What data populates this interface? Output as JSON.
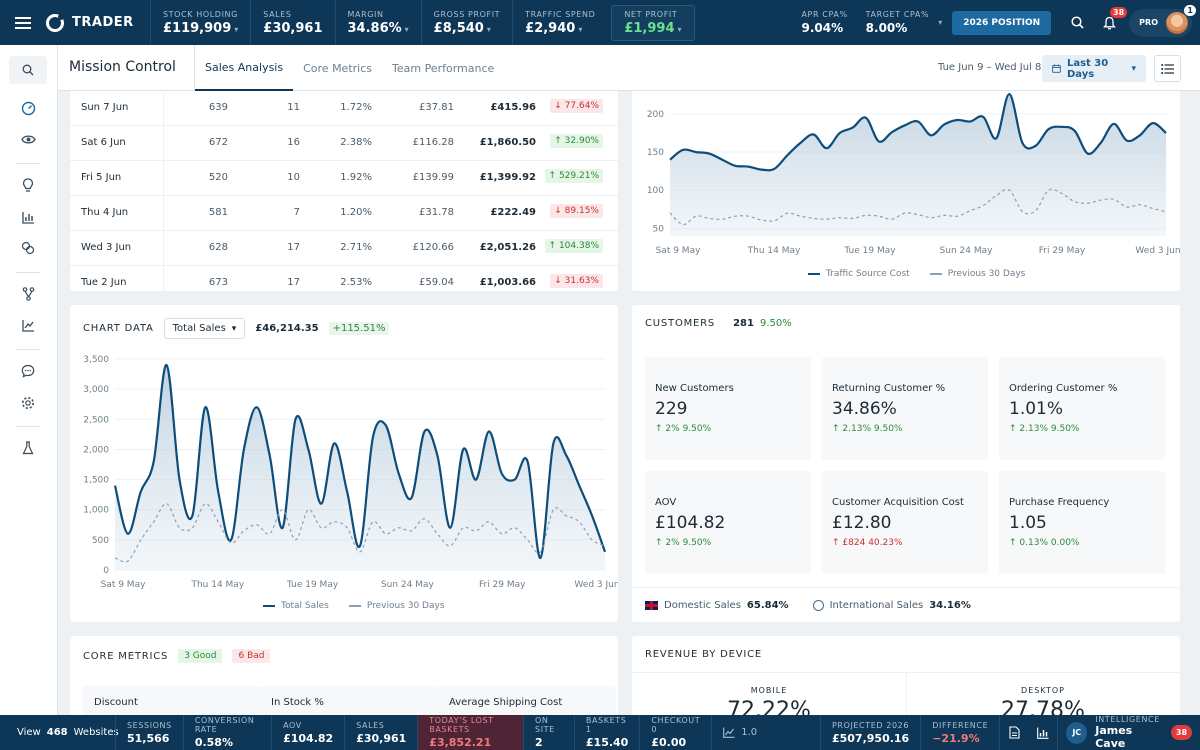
{
  "topbar": {
    "brand": "TRADER",
    "kpis": [
      {
        "label": "STOCK HOLDING",
        "value": "£119,909"
      },
      {
        "label": "SALES",
        "value": "£30,961"
      },
      {
        "label": "MARGIN",
        "value": "34.86%"
      },
      {
        "label": "GROSS PROFIT",
        "value": "£8,540"
      },
      {
        "label": "TRAFFIC SPEND",
        "value": "£2,940"
      },
      {
        "label": "NET PROFIT",
        "value": "£1,994"
      }
    ],
    "apr_cpa": {
      "label": "APR CPA%",
      "value": "9.04%"
    },
    "target_cpa": {
      "label": "TARGET CPA%",
      "value": "8.00%"
    },
    "position_button": "2026 POSITION",
    "notification_count": "38",
    "plan": "PRO",
    "plan_count": "1",
    "colors": {
      "navy": "#0e3656",
      "net_profit": "#6fe08e"
    }
  },
  "page": {
    "title": "Mission Control",
    "tabs": [
      "Sales Analysis",
      "Core Metrics",
      "Team Performance"
    ],
    "active_tab": "Sales Analysis",
    "date_range": "Tue Jun 9 – Wed Jul 8",
    "date_picker": "Last 30 Days"
  },
  "daily_table": [
    {
      "date": "Sun 7 Jun",
      "c1": "639",
      "c2": "11",
      "c3": "1.72%",
      "c4": "£37.81",
      "c5": "£415.96",
      "change": "77.64%",
      "dir": "down"
    },
    {
      "date": "Sat 6 Jun",
      "c1": "672",
      "c2": "16",
      "c3": "2.38%",
      "c4": "£116.28",
      "c5": "£1,860.50",
      "change": "32.90%",
      "dir": "up"
    },
    {
      "date": "Fri 5 Jun",
      "c1": "520",
      "c2": "10",
      "c3": "1.92%",
      "c4": "£139.99",
      "c5": "£1,399.92",
      "change": "529.21%",
      "dir": "up"
    },
    {
      "date": "Thu 4 Jun",
      "c1": "581",
      "c2": "7",
      "c3": "1.20%",
      "c4": "£31.78",
      "c5": "£222.49",
      "change": "89.15%",
      "dir": "down"
    },
    {
      "date": "Wed 3 Jun",
      "c1": "628",
      "c2": "17",
      "c3": "2.71%",
      "c4": "£120.66",
      "c5": "£2,051.26",
      "change": "104.38%",
      "dir": "up"
    },
    {
      "date": "Tue 2 Jun",
      "c1": "673",
      "c2": "17",
      "c3": "2.53%",
      "c4": "£59.04",
      "c5": "£1,003.66",
      "change": "31.63%",
      "dir": "down"
    }
  ],
  "chart_data": [
    {
      "type": "area",
      "x_ticks": [
        "Sat 9 May",
        "Thu 14 May",
        "Tue 19 May",
        "Sun 24 May",
        "Fri 29 May",
        "Wed 3 Jun"
      ],
      "y_ticks": [
        "50",
        "100",
        "150",
        "200"
      ],
      "ylim": [
        40,
        230
      ],
      "grid": true,
      "legend_position": "bottom",
      "series": [
        {
          "name": "Traffic Source Cost",
          "style": "solid-area",
          "color": "#0e4d7a",
          "values": [
            140,
            153,
            150,
            148,
            140,
            132,
            131,
            127,
            128,
            146,
            162,
            173,
            155,
            175,
            182,
            195,
            164,
            176,
            185,
            190,
            172,
            186,
            192,
            190,
            196,
            168,
            226,
            162,
            158,
            180,
            183,
            178,
            148,
            162,
            187,
            165,
            172,
            188,
            175
          ]
        },
        {
          "name": "Previous 30 Days",
          "style": "dashed",
          "color": "#8aa1b3",
          "values": [
            70,
            55,
            66,
            63,
            62,
            66,
            66,
            61,
            60,
            70,
            66,
            63,
            62,
            64,
            63,
            67,
            66,
            62,
            70,
            68,
            64,
            67,
            66,
            73,
            80,
            93,
            100,
            72,
            73,
            100,
            96,
            85,
            83,
            87,
            88,
            78,
            81,
            76,
            72
          ]
        }
      ]
    },
    {
      "type": "area",
      "x_ticks": [
        "Sat 9 May",
        "Thu 14 May",
        "Tue 19 May",
        "Sun 24 May",
        "Fri 29 May",
        "Wed 3 Jun"
      ],
      "y_ticks": [
        "0",
        "500",
        "1,000",
        "1,500",
        "2,000",
        "2,500",
        "3,000",
        "3,500"
      ],
      "ylim": [
        0,
        3600
      ],
      "grid": true,
      "legend_position": "bottom",
      "series": [
        {
          "name": "Total Sales",
          "style": "solid-area",
          "color": "#0e4d7a",
          "values": [
            1400,
            600,
            1300,
            1800,
            3400,
            1500,
            900,
            2700,
            1300,
            500,
            2000,
            2700,
            1900,
            700,
            2500,
            2000,
            1100,
            2100,
            1300,
            400,
            2200,
            2400,
            1600,
            1200,
            2300,
            1900,
            700,
            2000,
            1500,
            2300,
            1600,
            1500,
            1800,
            200,
            2100,
            1900,
            1400,
            900,
            300
          ]
        },
        {
          "name": "Previous 30 Days",
          "style": "dashed",
          "color": "#8aa1b3",
          "values": [
            200,
            150,
            500,
            800,
            1100,
            700,
            700,
            1100,
            800,
            450,
            650,
            750,
            600,
            1000,
            500,
            1000,
            700,
            800,
            700,
            300,
            800,
            600,
            700,
            650,
            850,
            600,
            400,
            700,
            650,
            800,
            600,
            700,
            500,
            300,
            1000,
            900,
            800,
            500,
            400
          ]
        }
      ]
    }
  ],
  "traffic_chart": {
    "legend_1": "Traffic Source Cost",
    "legend_2": "Previous 30 Days"
  },
  "sales_chart": {
    "title": "CHART DATA",
    "select": "Total Sales",
    "total": "£46,214.35",
    "change": "+115.51%",
    "legend_1": "Total Sales",
    "legend_2": "Previous 30 Days"
  },
  "customers": {
    "title": "CUSTOMERS",
    "count": "281",
    "pct": "9.50%",
    "metrics": [
      {
        "label": "New Customers",
        "value": "229",
        "delta": "2%",
        "delta2": "9.50%",
        "dir": "up"
      },
      {
        "label": "Returning Customer %",
        "value": "34.86%",
        "delta": "2.13%",
        "delta2": "9.50%",
        "dir": "up"
      },
      {
        "label": "Ordering Customer %",
        "value": "1.01%",
        "delta": "2.13%",
        "delta2": "9.50%",
        "dir": "up"
      },
      {
        "label": "AOV",
        "value": "£104.82",
        "delta": "2%",
        "delta2": "9.50%",
        "dir": "up"
      },
      {
        "label": "Customer Acquisition Cost",
        "value": "£12.80",
        "delta": "£824",
        "delta2": "40.23%",
        "dir": "down"
      },
      {
        "label": "Purchase Frequency",
        "value": "1.05",
        "delta": "0.13%",
        "delta2": "0.00%",
        "dir": "up"
      }
    ],
    "domestic_label": "Domestic Sales",
    "domestic_value": "65.84%",
    "international_label": "International Sales",
    "international_value": "34.16%"
  },
  "core_metrics": {
    "title": "CORE METRICS",
    "good": "3 Good",
    "bad": "6 Bad",
    "tiles": [
      "Discount",
      "In Stock %",
      "Average Shipping Cost"
    ]
  },
  "revenue_device": {
    "title": "REVENUE BY DEVICE",
    "mobile_label": "MOBILE",
    "mobile_value": "72.22%",
    "desktop_label": "DESKTOP",
    "desktop_value": "27.78%"
  },
  "bottombar": {
    "view_prefix": "View",
    "view_count": "468",
    "view_suffix": "Websites",
    "kpis": [
      {
        "label": "SESSIONS",
        "value": "51,566"
      },
      {
        "label": "CONVERSION RATE",
        "value": "0.58%"
      },
      {
        "label": "AOV",
        "value": "£104.82"
      },
      {
        "label": "SALES",
        "value": "£30,961"
      },
      {
        "label": "TODAY'S LOST BASKETS",
        "value": "£3,852.21"
      },
      {
        "label": "ON SITE",
        "value": "2"
      },
      {
        "label": "BASKETS 1",
        "value": "£15.40"
      },
      {
        "label": "CHECKOUT 0",
        "value": "£0.00"
      }
    ],
    "trend_value": "1.0",
    "projected": {
      "label": "PROJECTED 2026",
      "value": "£507,950.16"
    },
    "difference": {
      "label": "DIFFERENCE",
      "value": "−21.9%"
    },
    "user": {
      "initials": "JC",
      "label": "INTELLIGENCE",
      "name": "James Cave",
      "badge": "38"
    }
  }
}
